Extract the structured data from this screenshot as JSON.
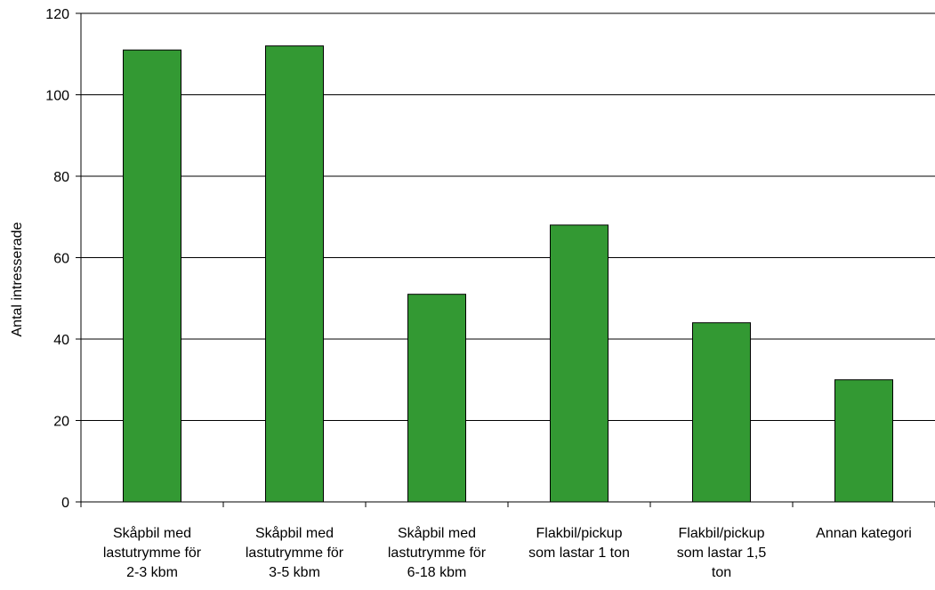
{
  "chart_data": {
    "type": "bar",
    "title": "",
    "xlabel": "",
    "ylabel": "Antal intresserade",
    "ylim": [
      0,
      120
    ],
    "yticks": [
      0,
      20,
      40,
      60,
      80,
      100,
      120
    ],
    "grid": true,
    "legend": "none",
    "bar_color": "#339933",
    "categories": [
      [
        "Skåpbil med",
        "lastutrymme för",
        "2-3 kbm"
      ],
      [
        "Skåpbil med",
        "lastutrymme för",
        "3-5 kbm"
      ],
      [
        "Skåpbil med",
        "lastutrymme för",
        "6-18 kbm"
      ],
      [
        "Flakbil/pickup",
        "som lastar 1 ton"
      ],
      [
        "Flakbil/pickup",
        "som lastar 1,5",
        "ton"
      ],
      [
        "Annan kategori"
      ]
    ],
    "values": [
      111,
      112,
      51,
      68,
      44,
      30
    ]
  }
}
